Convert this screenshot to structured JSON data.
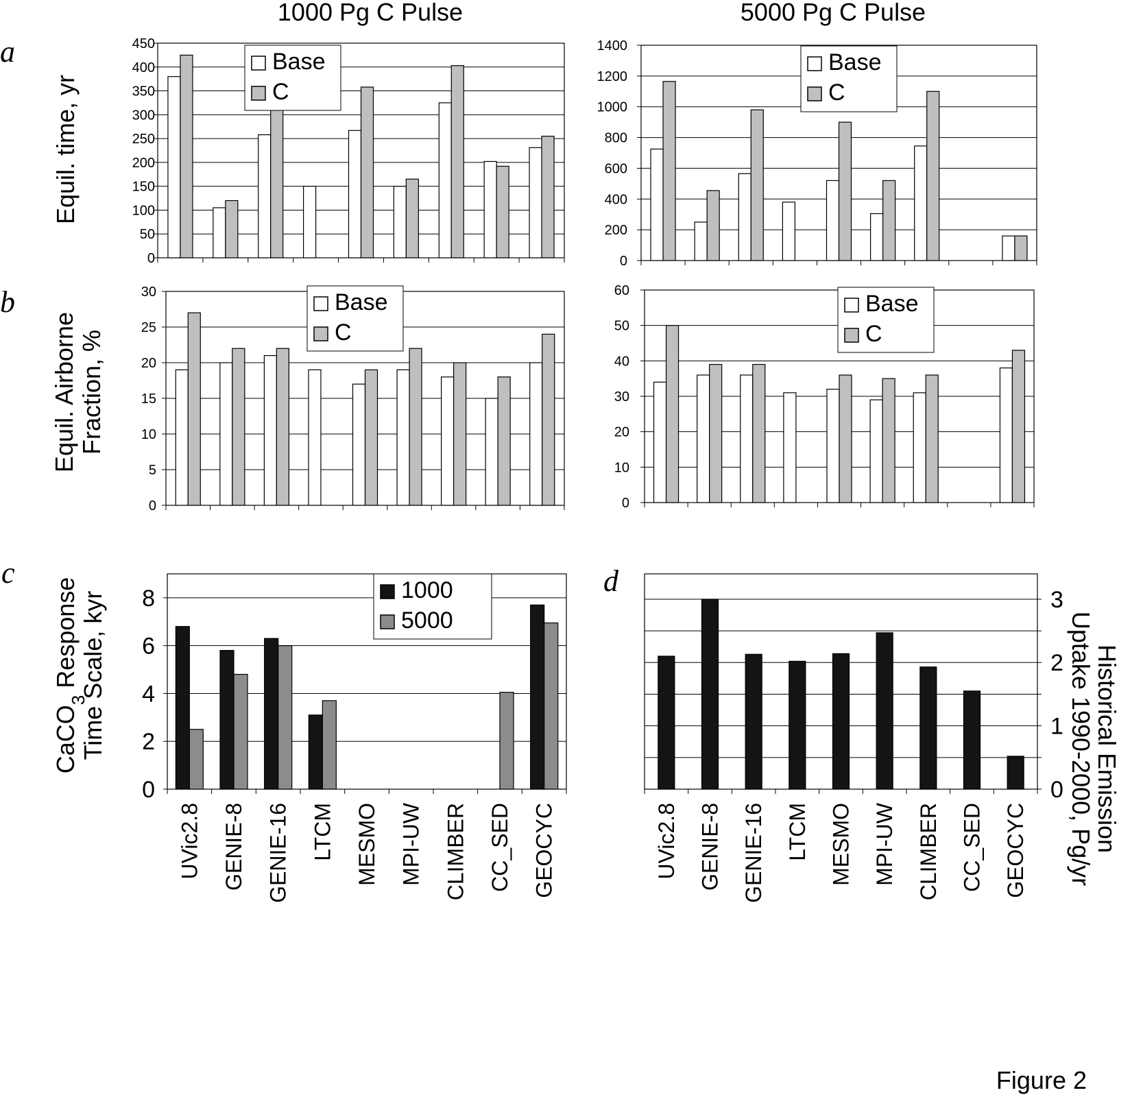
{
  "figure_label": "Figure 2",
  "column_titles": [
    "1000 Pg C Pulse",
    "5000 Pg C Pulse"
  ],
  "row_labels": {
    "a": "a",
    "b": "b",
    "c": "c",
    "d": "d"
  },
  "y_titles": {
    "a": [
      "Equil. time, yr"
    ],
    "b": [
      "Equil. Airborne",
      "Fraction, %"
    ],
    "c_line1": "CaCO",
    "c_sub": "3",
    "c_line1_rest": " Response",
    "c_line2": "Time Scale, kyr",
    "d": [
      "Historical Emission",
      "Uptake 1990-2000, Pg/yr"
    ]
  },
  "colors": {
    "base": "#ffffff",
    "c": "#bfbfbf",
    "k1000": "#141414",
    "k5000": "#8c8c8c",
    "grid": "#000000"
  },
  "categories": [
    "UVic2.8",
    "GENIE-8",
    "GENIE-16",
    "LTCM",
    "MESMO",
    "MPI-UW",
    "CLIMBER",
    "CC_SED",
    "GEOCYC"
  ],
  "chart_data": [
    {
      "id": "a1000",
      "type": "bar",
      "panel": "a",
      "pulse": "1000 Pg C Pulse",
      "ylim": [
        0,
        450
      ],
      "yticks": [
        0,
        50,
        100,
        150,
        200,
        250,
        300,
        350,
        400,
        450
      ],
      "legend": "top-center",
      "series": [
        {
          "name": "Base",
          "values": [
            380,
            105,
            258,
            150,
            267,
            150,
            325,
            202,
            231
          ]
        },
        {
          "name": "C",
          "values": [
            425,
            120,
            320,
            null,
            358,
            165,
            403,
            192,
            255
          ]
        }
      ]
    },
    {
      "id": "a5000",
      "type": "bar",
      "panel": "a",
      "pulse": "5000 Pg C Pulse",
      "ylim": [
        0,
        1400
      ],
      "yticks": [
        0,
        200,
        400,
        600,
        800,
        1000,
        1200,
        1400
      ],
      "legend": "top-center",
      "series": [
        {
          "name": "Base",
          "values": [
            725,
            250,
            565,
            380,
            520,
            305,
            745,
            null,
            160
          ]
        },
        {
          "name": "C",
          "values": [
            1165,
            455,
            980,
            null,
            900,
            520,
            1100,
            null,
            160
          ]
        }
      ]
    },
    {
      "id": "b1000",
      "type": "bar",
      "panel": "b",
      "pulse": "1000 Pg C Pulse",
      "ylim": [
        0,
        30
      ],
      "yticks": [
        0,
        5,
        10,
        15,
        20,
        25,
        30
      ],
      "legend": "top-center",
      "series": [
        {
          "name": "Base",
          "values": [
            19,
            20,
            21,
            19,
            17,
            19,
            18,
            15,
            20
          ]
        },
        {
          "name": "C",
          "values": [
            27,
            22,
            22,
            null,
            19,
            22,
            20,
            18,
            24
          ]
        }
      ]
    },
    {
      "id": "b5000",
      "type": "bar",
      "panel": "b",
      "pulse": "5000 Pg C Pulse",
      "ylim": [
        0,
        60
      ],
      "yticks": [
        0,
        10,
        20,
        30,
        40,
        50,
        60
      ],
      "legend": "top-center",
      "series": [
        {
          "name": "Base",
          "values": [
            34,
            36,
            36,
            31,
            32,
            29,
            31,
            null,
            38
          ]
        },
        {
          "name": "C",
          "values": [
            50,
            39,
            39,
            null,
            36,
            35,
            36,
            null,
            43
          ]
        }
      ]
    },
    {
      "id": "c",
      "type": "bar",
      "panel": "c",
      "ylim": [
        0,
        9
      ],
      "yticks": [
        0,
        2,
        4,
        6,
        8
      ],
      "legend": "top-right",
      "series": [
        {
          "name": "1000",
          "values": [
            6.8,
            5.8,
            6.3,
            3.1,
            null,
            null,
            null,
            null,
            7.7
          ]
        },
        {
          "name": "5000",
          "values": [
            2.5,
            4.8,
            6.0,
            3.7,
            null,
            null,
            null,
            4.05,
            6.95
          ]
        }
      ]
    },
    {
      "id": "d",
      "type": "bar",
      "panel": "d",
      "ylim": [
        0,
        3.4
      ],
      "yticks": [
        0,
        1,
        2,
        3
      ],
      "y_axis_side": "right",
      "series": [
        {
          "values": [
            2.1,
            3.0,
            2.13,
            2.02,
            2.14,
            2.47,
            1.93,
            1.55,
            0.52
          ]
        }
      ]
    }
  ]
}
